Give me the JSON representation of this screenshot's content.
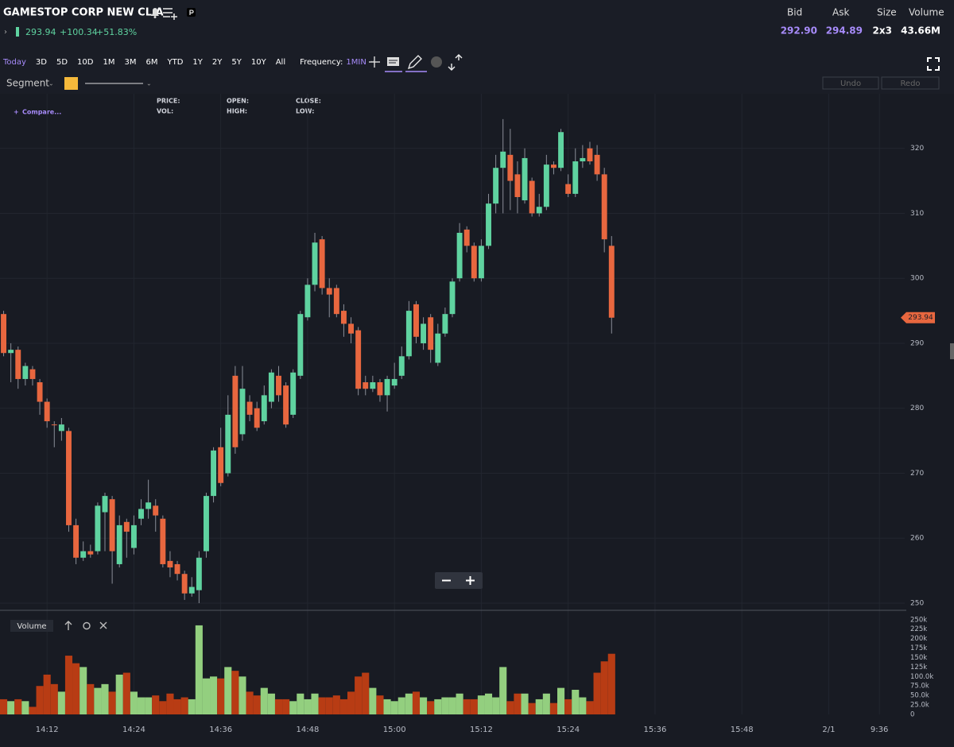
{
  "header": {
    "title": "GAMESTOP CORP NEW CL A",
    "price": "293.94",
    "change": "+100.34",
    "change_pct": "+51.83%",
    "quote": [
      {
        "label": "Bid",
        "value": "292.90"
      },
      {
        "label": "Ask",
        "value": "294.89"
      },
      {
        "label": "Size",
        "value": "2x3"
      },
      {
        "label": "Volume",
        "value": "43.66M"
      }
    ]
  },
  "toolbar": {
    "ranges": [
      "Today",
      "3D",
      "5D",
      "10D",
      "1M",
      "3M",
      "6M",
      "YTD",
      "1Y",
      "2Y",
      "5Y",
      "10Y",
      "All"
    ],
    "frequency_label": "Frequency:",
    "frequency": "1MIN",
    "segment": "Segment",
    "undo": "Undo",
    "redo": "Redo"
  },
  "legend": {
    "compare": "Compare...",
    "fields": [
      "PRICE:",
      "OPEN:",
      "CLOSE:",
      "VOL:",
      "HIGH:",
      "LOW:"
    ]
  },
  "chart_data": {
    "type": "candlestick",
    "open": [
      294.5,
      288.5,
      289,
      284.5,
      286,
      284,
      281,
      277.5,
      276.5,
      276.5,
      262,
      257,
      258,
      258,
      264,
      266,
      256,
      262.5,
      258.5,
      263,
      264.5,
      265,
      263,
      256.5,
      256,
      254.5,
      251.5,
      252,
      258,
      266.5,
      274,
      270,
      285,
      276,
      281,
      280,
      278,
      281,
      285,
      283.5,
      279,
      285,
      294,
      299,
      306,
      298.5,
      298.5,
      295,
      293,
      292,
      284,
      283,
      284,
      282,
      283.5,
      285,
      288,
      296,
      290,
      294,
      287,
      291.5,
      294.5,
      300,
      307.5,
      305,
      300,
      305,
      311.5,
      317,
      319,
      316,
      312,
      315,
      310,
      311,
      317.5,
      317,
      314.5,
      313,
      318,
      320,
      319,
      316,
      305
    ],
    "high": [
      295,
      290,
      289.5,
      287,
      286.5,
      284.5,
      281.5,
      278,
      278.5,
      277,
      263,
      259.5,
      259,
      265.5,
      267,
      266.5,
      263.5,
      263,
      263.5,
      266,
      269,
      266,
      263.5,
      258,
      256.5,
      255,
      254,
      258,
      267,
      274,
      277,
      282,
      286.5,
      286.5,
      282,
      281,
      283.5,
      286,
      286.5,
      284,
      286,
      295,
      300,
      307,
      306.5,
      300,
      299,
      296,
      294,
      292.5,
      285,
      285,
      284.5,
      285,
      287,
      289.5,
      296.5,
      296.5,
      294,
      294.5,
      293,
      295.5,
      300,
      308.5,
      308,
      305.5,
      306,
      313,
      319,
      324.5,
      323,
      318,
      320,
      315.5,
      313,
      319,
      318,
      323,
      316,
      320,
      320.5,
      321,
      320.5,
      317,
      306.5
    ],
    "low": [
      288,
      284,
      283,
      283.5,
      283.5,
      279,
      277,
      274,
      275,
      261,
      256,
      256.5,
      257,
      257.5,
      258,
      253,
      255.5,
      257,
      257.5,
      262,
      263,
      261,
      255.5,
      254,
      253.5,
      250.5,
      251,
      250,
      257,
      265.5,
      268,
      269.5,
      273,
      275,
      278,
      276.5,
      277.5,
      280,
      281,
      277,
      278.5,
      284.5,
      293.5,
      298,
      297.5,
      294,
      294,
      291,
      290,
      282,
      282,
      282.5,
      281,
      279.5,
      283,
      284.5,
      287.5,
      290,
      289,
      287,
      286.5,
      291,
      294,
      299.5,
      304,
      299.5,
      299.5,
      304.5,
      310,
      310,
      310.5,
      310,
      311.5,
      309.5,
      309.5,
      310.5,
      316,
      316.5,
      312.5,
      312.5,
      317,
      317.5,
      315,
      304,
      291.5
    ],
    "close": [
      288.5,
      289,
      284.5,
      286.5,
      284.5,
      281,
      278,
      277.4,
      277.5,
      262,
      257,
      258,
      257.5,
      265,
      266.5,
      258,
      262,
      261,
      262,
      264.5,
      265.5,
      263.5,
      256,
      255.5,
      254.5,
      251.5,
      252.5,
      257,
      266.5,
      273.5,
      268.5,
      279,
      274,
      283,
      279,
      277,
      282,
      285.5,
      282,
      277.5,
      285.5,
      294.5,
      299,
      305.5,
      298.5,
      297.5,
      294.5,
      293,
      291.5,
      283,
      283,
      284,
      282,
      284.5,
      284.5,
      288,
      295,
      291,
      293,
      289,
      291.5,
      294.5,
      299.5,
      307,
      305,
      300,
      305,
      311.5,
      317,
      319.5,
      315,
      312.5,
      318.5,
      310,
      311,
      317.5,
      317,
      322.5,
      313,
      318,
      318.5,
      318,
      316,
      306,
      293.94
    ],
    "volume": [
      40000,
      35000,
      40000,
      35000,
      20000,
      75000,
      105000,
      80000,
      60000,
      155000,
      135000,
      125000,
      80000,
      70000,
      80000,
      60000,
      105000,
      110000,
      60000,
      45000,
      45000,
      50000,
      35000,
      55000,
      40000,
      45000,
      40000,
      235000,
      95000,
      100000,
      95000,
      125000,
      115000,
      100000,
      60000,
      50000,
      70000,
      55000,
      40000,
      40000,
      35000,
      55000,
      40000,
      55000,
      45000,
      45000,
      50000,
      40000,
      60000,
      100000,
      110000,
      70000,
      50000,
      40000,
      35000,
      45000,
      55000,
      60000,
      45000,
      35000,
      40000,
      45000,
      45000,
      55000,
      40000,
      40000,
      50000,
      55000,
      45000,
      125000,
      35000,
      55000,
      55000,
      30000,
      40000,
      55000,
      30000,
      70000,
      40000,
      65000,
      45000,
      35000,
      110000,
      140000,
      160000
    ],
    "up_color": "#5fd3a0",
    "down_color": "#e8673f",
    "volume_up_color": "#93cf7f",
    "volume_down_color": "#b83c14",
    "last_price": 293.94,
    "last_price_color": "#e8673f",
    "xlim": [
      -0.5,
      124.5
    ],
    "xticks": [
      {
        "value": 6,
        "label": "14:12"
      },
      {
        "value": 18,
        "label": "14:24"
      },
      {
        "value": 30,
        "label": "14:36"
      },
      {
        "value": 42,
        "label": "14:48"
      },
      {
        "value": 54,
        "label": "15:00"
      },
      {
        "value": 66,
        "label": "15:12"
      },
      {
        "value": 78,
        "label": "15:24"
      },
      {
        "value": 90,
        "label": "15:36"
      },
      {
        "value": 102,
        "label": "15:48"
      },
      {
        "value": 114,
        "label": "2/1"
      },
      {
        "value": 121,
        "label": "9:36"
      }
    ],
    "ylim": [
      248.9,
      328.4
    ],
    "yticks": [
      250,
      260,
      270,
      280,
      290,
      300,
      310,
      320
    ],
    "volume_label": "Volume",
    "volume_ylim": [
      0,
      260000
    ],
    "volume_yticks": [
      0,
      {
        "value": 25000,
        "label": "25.0k"
      },
      {
        "value": 50000,
        "label": "50.0k"
      },
      {
        "value": 75000,
        "label": "75.0k"
      },
      {
        "value": 100000,
        "label": "100.0k"
      },
      {
        "value": 125000,
        "label": "125k"
      },
      {
        "value": 150000,
        "label": "150k"
      },
      {
        "value": 175000,
        "label": "175k"
      },
      {
        "value": 200000,
        "label": "200k"
      },
      {
        "value": 225000,
        "label": "225k"
      },
      {
        "value": 250000,
        "label": "250k"
      }
    ],
    "grid": true
  }
}
